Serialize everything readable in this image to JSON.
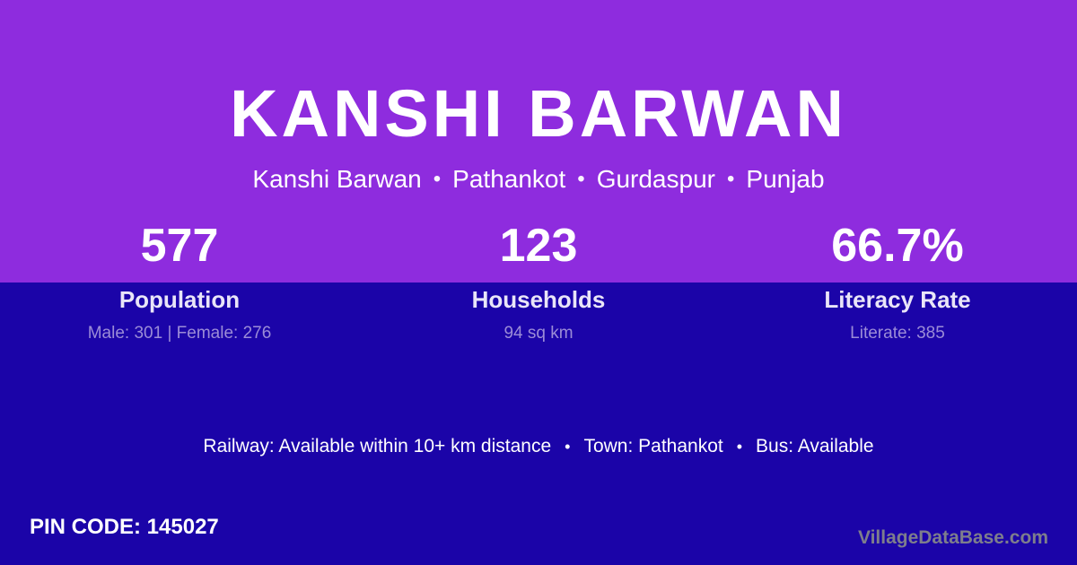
{
  "theme": {
    "top_background": "#8E2CDE",
    "bottom_background": "#1B04A8",
    "text_primary": "#FFFFFF",
    "stat_label_color": "#E9E5F8",
    "stat_detail_color": "#9B8CD7",
    "watermark_color": "#7E7E8C"
  },
  "header": {
    "title": "KANSHI BARWAN",
    "separator": "•",
    "location_parts": [
      "Kanshi Barwan",
      "Pathankot",
      "Gurdaspur",
      "Punjab"
    ]
  },
  "stats": [
    {
      "value": "577",
      "label": "Population",
      "detail": "Male: 301 | Female: 276"
    },
    {
      "value": "123",
      "label": "Households",
      "detail": "94 sq km"
    },
    {
      "value": "66.7%",
      "label": "Literacy Rate",
      "detail": "Literate: 385"
    }
  ],
  "info": {
    "separator": "•",
    "items": [
      "Railway: Available within 10+ km distance",
      "Town: Pathankot",
      "Bus: Available"
    ]
  },
  "footer": {
    "pin_code": "PIN CODE: 145027",
    "watermark": "VillageDataBase.com"
  }
}
